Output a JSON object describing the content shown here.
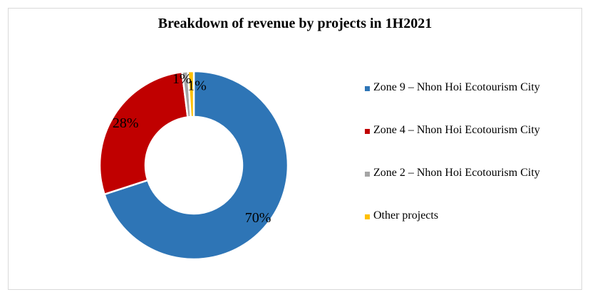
{
  "chart_data": {
    "type": "pie",
    "donut": true,
    "title": "Breakdown of revenue by projects in 1H2021",
    "categories": [
      "Zone 9 – Nhon Hoi Ecotourism City",
      "Zone 4 – Nhon Hoi Ecotourism City",
      "Zone 2 – Nhon Hoi Ecotourism City",
      "Other projects"
    ],
    "values": [
      70,
      28,
      1,
      1
    ],
    "data_labels": [
      "70%",
      "28%",
      "1%",
      "1%"
    ],
    "colors": [
      "#2e75b6",
      "#c00000",
      "#a5a5a5",
      "#ffc000"
    ],
    "legend_position": "right"
  }
}
